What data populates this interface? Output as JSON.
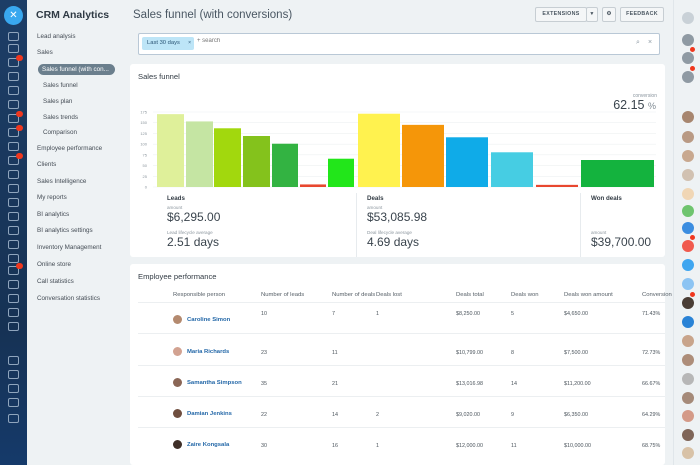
{
  "app": {
    "title": "CRM Analytics"
  },
  "menu": {
    "items": [
      {
        "label": "Lead analysis",
        "level": 0
      },
      {
        "label": "Sales",
        "level": 0
      },
      {
        "label": "Sales funnel (with con...",
        "level": 1,
        "active": true
      },
      {
        "label": "Sales funnel",
        "level": 2
      },
      {
        "label": "Sales plan",
        "level": 2
      },
      {
        "label": "Sales trends",
        "level": 2
      },
      {
        "label": "Comparison",
        "level": 2
      },
      {
        "label": "Employee performance",
        "level": 0
      },
      {
        "label": "Clients",
        "level": 0
      },
      {
        "label": "Sales Intelligence",
        "level": 0
      },
      {
        "label": "My reports",
        "level": 0
      },
      {
        "label": "BI analytics",
        "level": 0
      },
      {
        "label": "BI analytics settings",
        "level": 0
      },
      {
        "label": "Inventory Management",
        "level": 0
      },
      {
        "label": "Online store",
        "level": 0
      },
      {
        "label": "Call statistics",
        "level": 0
      },
      {
        "label": "Conversation statistics",
        "level": 0
      }
    ]
  },
  "header": {
    "title": "Sales funnel (with conversions)",
    "extensions_label": "EXTENSIONS",
    "feedback_label": "FEEDBACK"
  },
  "filter": {
    "chip_label": "Last 30 days",
    "search_placeholder": "+ search"
  },
  "funnel": {
    "title": "Sales funnel",
    "conversion_label": "conversion",
    "conversion_value": "62.15",
    "conversion_unit": "%",
    "stages": [
      {
        "name": "Leads",
        "amount_label": "amount",
        "amount": "$6,295.00",
        "lifecycle_label": "Lead lifecycle average",
        "lifecycle": "2.51 days"
      },
      {
        "name": "Deals",
        "amount_label": "amount",
        "amount": "$53,085.98",
        "lifecycle_label": "Deal lifecycle average",
        "lifecycle": "4.69 days"
      },
      {
        "name": "Won deals",
        "amount_label": "amount",
        "amount": "$39,700.00"
      }
    ]
  },
  "chart_data": {
    "type": "bar",
    "ylim": [
      0,
      175
    ],
    "yticks": [
      0,
      25,
      50,
      75,
      100,
      125,
      150,
      175
    ],
    "grid": true,
    "values": [
      170,
      153,
      137,
      119,
      101,
      6,
      66,
      171,
      145,
      116,
      81,
      5,
      63
    ],
    "colors": [
      "#dff09a",
      "#c5e5a3",
      "#a2d80d",
      "#84c21c",
      "#33b342",
      "#e8472f",
      "#22e61a",
      "#fff24f",
      "#f59609",
      "#0fabe8",
      "#46cde3",
      "#e8472f",
      "#14b33e"
    ]
  },
  "employees": {
    "title": "Employee performance",
    "columns": [
      "Responsible person",
      "Number of leads",
      "Number of deals",
      "Deals lost",
      "Deals total",
      "Deals won",
      "Deals won amount",
      "Conversion"
    ],
    "rows": [
      {
        "name": "Caroline Simon",
        "cells": [
          "10",
          "7",
          "1",
          "$8,250.00",
          "5",
          "$4,650.00",
          "71.43%"
        ]
      },
      {
        "name": "Maria Richards",
        "cells": [
          "23",
          "11",
          "",
          "$10,799.00",
          "8",
          "$7,500.00",
          "72.73%"
        ]
      },
      {
        "name": "Samantha Simpson",
        "cells": [
          "35",
          "21",
          "",
          "$13,016.98",
          "14",
          "$11,200.00",
          "66.67%"
        ]
      },
      {
        "name": "Damian Jenkins",
        "cells": [
          "22",
          "14",
          "2",
          "$9,020.00",
          "9",
          "$6,350.00",
          "64.29%"
        ]
      },
      {
        "name": "Zaire Kongsala",
        "cells": [
          "30",
          "16",
          "1",
          "$12,000.00",
          "11",
          "$10,000.00",
          "68.75%"
        ]
      }
    ]
  }
}
